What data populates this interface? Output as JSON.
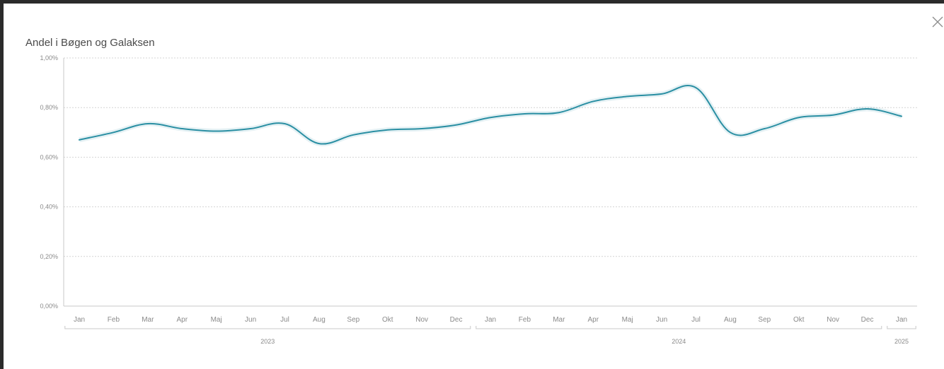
{
  "window": {
    "close_icon": "close-icon"
  },
  "colors": {
    "line": "#2a8fa3",
    "border": "#2b2b2b"
  },
  "chart_data": {
    "type": "line",
    "title": "Andel i Bøgen og Galaksen",
    "xlabel": "",
    "ylabel": "",
    "ylim": [
      0,
      1.0
    ],
    "yticks": [
      "0,00%",
      "0,20%",
      "0,40%",
      "0,60%",
      "0,80%",
      "1,00%"
    ],
    "grid": true,
    "categories": [
      "Jan",
      "Feb",
      "Mar",
      "Apr",
      "Maj",
      "Jun",
      "Jul",
      "Aug",
      "Sep",
      "Okt",
      "Nov",
      "Dec",
      "Jan",
      "Feb",
      "Mar",
      "Apr",
      "Maj",
      "Jun",
      "Jul",
      "Aug",
      "Sep",
      "Okt",
      "Nov",
      "Dec",
      "Jan"
    ],
    "years": [
      {
        "label": "2023",
        "months": 12
      },
      {
        "label": "2024",
        "months": 12
      },
      {
        "label": "2025",
        "months": 1
      }
    ],
    "series": [
      {
        "values": [
          0.67,
          0.7,
          0.735,
          0.715,
          0.705,
          0.715,
          0.735,
          0.655,
          0.69,
          0.71,
          0.715,
          0.73,
          0.76,
          0.775,
          0.78,
          0.825,
          0.845,
          0.855,
          0.88,
          0.7,
          0.715,
          0.76,
          0.77,
          0.795,
          0.765
        ]
      }
    ]
  }
}
